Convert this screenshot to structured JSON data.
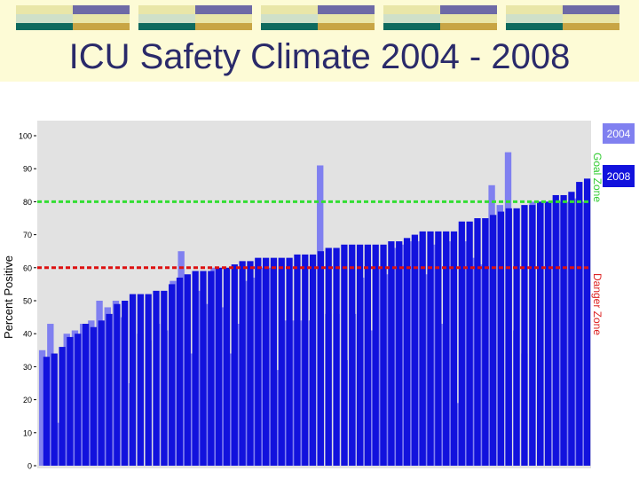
{
  "slide": {
    "title": "ICU Safety Climate 2004 - 2008"
  },
  "header": {
    "decoration": "banded-tiles"
  },
  "colors": {
    "plot_bg": "#e2e2e2",
    "bar_2004": "#8080f0",
    "bar_2008": "#1212dd",
    "goal_line": "#33dd33",
    "danger_line": "#dd1111"
  },
  "chart_data": {
    "type": "bar",
    "ylabel": "Percent Positive",
    "xlabel": "",
    "ylim": [
      0,
      100
    ],
    "yticks": [
      0,
      10,
      20,
      30,
      40,
      50,
      60,
      70,
      80,
      90,
      100
    ],
    "grid": false,
    "legend": "right",
    "series": [
      {
        "name": "2004",
        "values": [
          35,
          43,
          13,
          40,
          41,
          43,
          44,
          50,
          48,
          50,
          45,
          25,
          40,
          38,
          43,
          41,
          56,
          65,
          34,
          53,
          49,
          60,
          48,
          34,
          43,
          56,
          57,
          60,
          60,
          29,
          44,
          44,
          44,
          44,
          91,
          46,
          46,
          32,
          46,
          57,
          41,
          60,
          58,
          66,
          67,
          68,
          68,
          58,
          67,
          43,
          68,
          19,
          68,
          63,
          61,
          85,
          79,
          95,
          41,
          34,
          80,
          80,
          80,
          80,
          80,
          81,
          80
        ]
      },
      {
        "name": "2008",
        "values": [
          33,
          34,
          36,
          39,
          40,
          43,
          42,
          44,
          46,
          49,
          50,
          52,
          52,
          52,
          53,
          53,
          55,
          57,
          58,
          59,
          59,
          59,
          60,
          60,
          61,
          62,
          62,
          63,
          63,
          63,
          63,
          63,
          64,
          64,
          64,
          65,
          66,
          66,
          67,
          67,
          67,
          67,
          67,
          67,
          68,
          68,
          69,
          70,
          71,
          71,
          71,
          71,
          71,
          74,
          74,
          75,
          75,
          76,
          77,
          78,
          78,
          79,
          79,
          80,
          80,
          82,
          82,
          83,
          86,
          87
        ]
      }
    ],
    "annotations": [
      {
        "text": "Goal Zone",
        "y": 80
      },
      {
        "text": "Danger Zone",
        "y": 60
      }
    ]
  }
}
